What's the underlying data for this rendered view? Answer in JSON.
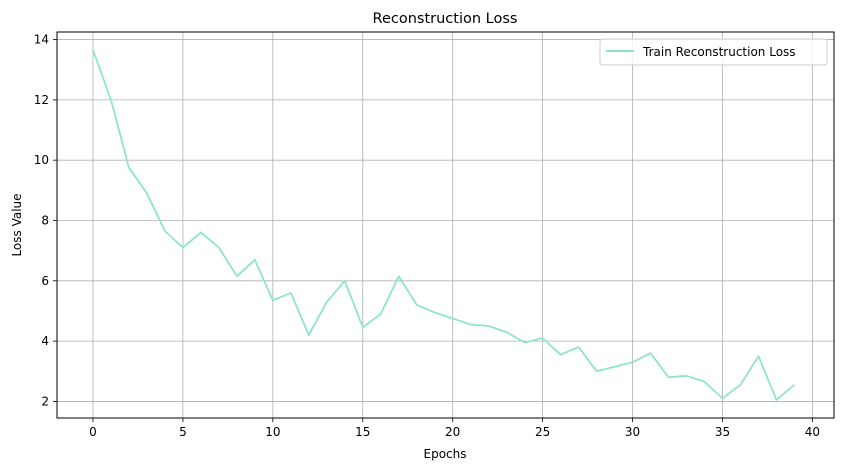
{
  "chart_data": {
    "type": "line",
    "title": "Reconstruction Loss",
    "xlabel": "Epochs",
    "ylabel": "Loss Value",
    "xlim": [
      -2,
      41.2
    ],
    "ylim": [
      1.45,
      14.25
    ],
    "xticks": [
      0,
      5,
      10,
      15,
      20,
      25,
      30,
      35,
      40
    ],
    "yticks": [
      2,
      4,
      6,
      8,
      10,
      12,
      14
    ],
    "grid": true,
    "legend_position": "top-right",
    "series": [
      {
        "name": "Train Reconstruction Loss",
        "color": "#8ee5cc",
        "x": [
          0,
          1,
          2,
          3,
          4,
          5,
          6,
          7,
          8,
          9,
          10,
          11,
          12,
          13,
          14,
          15,
          16,
          17,
          18,
          19,
          20,
          21,
          22,
          23,
          24,
          25,
          26,
          27,
          28,
          29,
          30,
          31,
          32,
          33,
          34,
          35,
          36,
          37,
          38,
          39
        ],
        "y": [
          13.65,
          12.0,
          9.75,
          8.9,
          7.65,
          7.1,
          7.6,
          7.1,
          6.15,
          6.7,
          5.35,
          5.6,
          4.2,
          5.3,
          6.0,
          4.45,
          4.9,
          6.15,
          5.2,
          4.95,
          4.75,
          4.55,
          4.5,
          4.3,
          3.95,
          4.1,
          3.55,
          3.8,
          3.0,
          3.15,
          3.3,
          3.6,
          2.8,
          2.85,
          2.65,
          2.1,
          2.55,
          3.5,
          2.05,
          2.55
        ]
      }
    ]
  }
}
